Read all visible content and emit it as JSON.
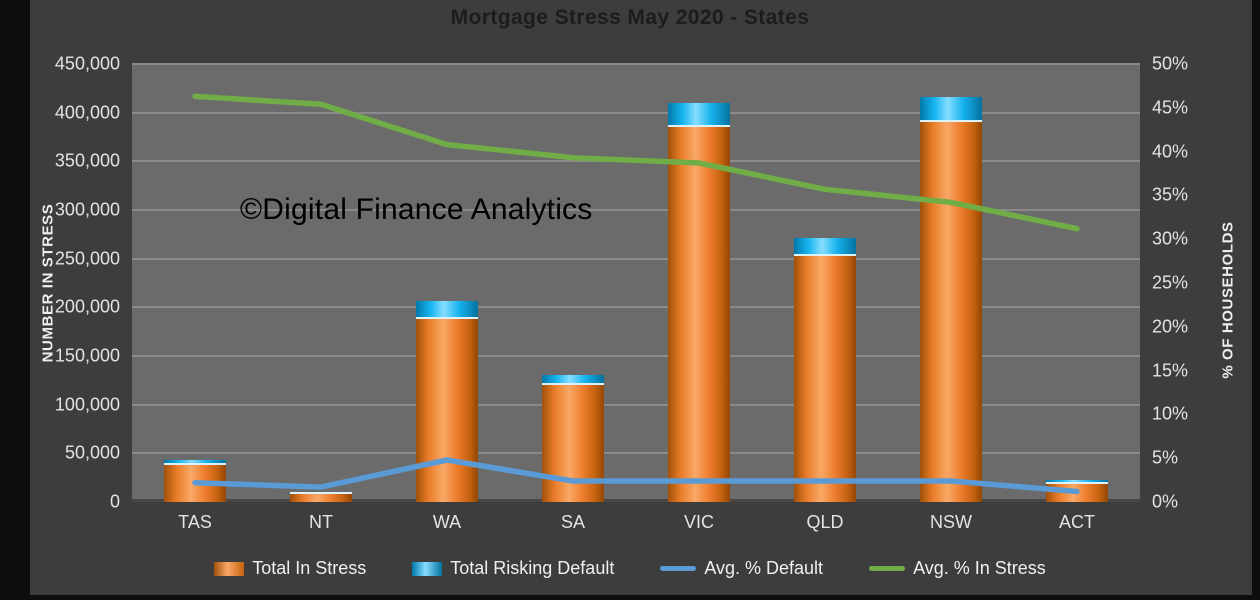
{
  "chart_data": {
    "type": "bar+line combo (stacked cylinder bars, dual axis)",
    "title": "Mortgage Stress May 2020 - States",
    "watermark": "©Digital Finance Analytics",
    "categories": [
      "TAS",
      "NT",
      "WA",
      "SA",
      "VIC",
      "QLD",
      "NSW",
      "ACT"
    ],
    "series": [
      {
        "name": "Total In Stress",
        "type": "bar",
        "stack": "total",
        "axis": "left",
        "color": "#ED7D31",
        "values": [
          38000,
          8000,
          188000,
          120000,
          385000,
          253000,
          390000,
          18000
        ]
      },
      {
        "name": "Total Risking Default",
        "type": "bar",
        "stack": "total",
        "axis": "left",
        "color": "#00B0F0",
        "values": [
          5500,
          1500,
          19000,
          10000,
          25000,
          18000,
          26000,
          4500
        ]
      },
      {
        "name": "Avg. % Default",
        "type": "line",
        "axis": "right",
        "color": "#5B9BD5",
        "values_pct": [
          2.2,
          1.7,
          4.8,
          2.4,
          2.4,
          2.4,
          2.4,
          1.2
        ]
      },
      {
        "name": "Avg. % In Stress",
        "type": "line",
        "axis": "right",
        "color": "#70AD47",
        "values_pct": [
          46.3,
          45.4,
          40.8,
          39.3,
          38.7,
          35.7,
          34.2,
          31.2
        ]
      }
    ],
    "left_axis": {
      "title": "NUMBER IN STRESS",
      "range": [
        0,
        450000
      ],
      "ticks": [
        "450,000",
        "400,000",
        "350,000",
        "300,000",
        "250,000",
        "200,000",
        "150,000",
        "100,000",
        "50,000",
        "0"
      ]
    },
    "right_axis": {
      "title": "% OF HOUSEHOLDS",
      "range_pct": [
        0,
        50
      ],
      "ticks": [
        "50%",
        "45%",
        "40%",
        "35%",
        "30%",
        "25%",
        "20%",
        "15%",
        "10%",
        "5%",
        "0%"
      ]
    },
    "grid": true,
    "legend_position": "bottom",
    "legend": [
      {
        "label": "Total In Stress",
        "swatch": "bar-orange"
      },
      {
        "label": "Total Risking Default",
        "swatch": "bar-blue"
      },
      {
        "label": "Avg. % Default",
        "swatch": "line-blue"
      },
      {
        "label": "Avg. % In Stress",
        "swatch": "line-green"
      }
    ],
    "colors": {
      "background": "#3d3d3d",
      "plot_background": "#6b6b6b",
      "gridline": "#8a8a8a",
      "axis_text": "#e3e3e3",
      "title_text": "#1c1c1c",
      "watermark_text": "#000000",
      "bar_orange": "#ED7D31",
      "bar_blue": "#00B0F0",
      "line_blue": "#5B9BD5",
      "line_green": "#70AD47"
    }
  }
}
